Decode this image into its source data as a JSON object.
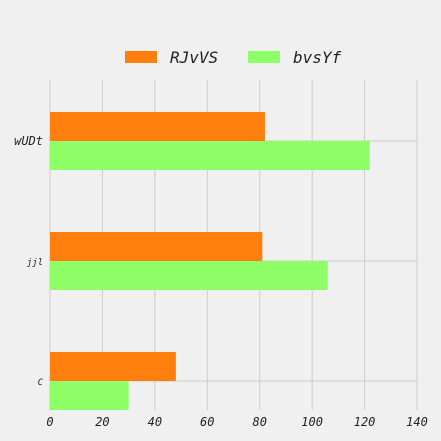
{
  "chart_data": {
    "type": "bar",
    "orientation": "horizontal",
    "categories": [
      "wUDt",
      "jjl",
      "C"
    ],
    "series": [
      {
        "name": "RJvVS",
        "color": "#ff7f0e",
        "values": [
          82,
          81,
          48
        ]
      },
      {
        "name": "bvsYf",
        "color": "#8fff68",
        "values": [
          122,
          106,
          30
        ]
      }
    ],
    "xlim": [
      0,
      140
    ],
    "xticks": [
      0,
      20,
      40,
      60,
      80,
      100,
      120,
      140
    ],
    "grid": true,
    "legend_position": "top-center",
    "title": "",
    "xlabel": "",
    "ylabel": ""
  }
}
